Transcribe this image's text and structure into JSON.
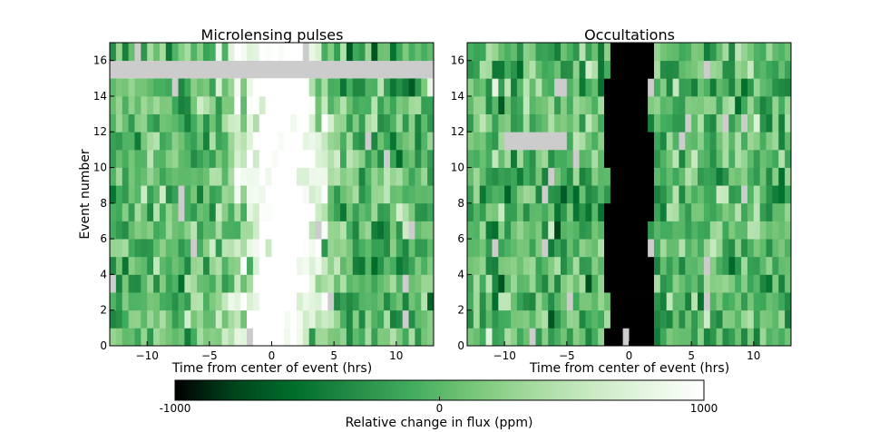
{
  "chart_data": [
    {
      "type": "heatmap",
      "title": "Microlensing pulses",
      "xlabel": "Time from center of event (hrs)",
      "ylabel": "Event number",
      "xlim": [
        -13,
        13
      ],
      "ylim": [
        0,
        17
      ],
      "xticks": [
        -10,
        -5,
        0,
        5,
        10
      ],
      "xtick_labels": [
        "−10",
        "−5",
        "0",
        "5",
        "10"
      ],
      "yticks": [
        0,
        2,
        4,
        6,
        8,
        10,
        12,
        14,
        16
      ],
      "yticks_labels": [
        "0",
        "2",
        "4",
        "6",
        "8",
        "10",
        "12",
        "14",
        "16"
      ],
      "events": 17,
      "missing_rows": [
        15
      ],
      "signal": "brightening",
      "signal_peak_ppm": 1000,
      "signal_width_hrs": 2.2,
      "signal_center_drift_hrs": [
        0.0,
        1.2
      ]
    },
    {
      "type": "heatmap",
      "title": "Occultations",
      "xlabel": "Time from center of event (hrs)",
      "ylabel": "",
      "xlim": [
        -13,
        13
      ],
      "ylim": [
        0,
        17
      ],
      "xticks": [
        -10,
        -5,
        0,
        5,
        10
      ],
      "xtick_labels": [
        "−10",
        "−5",
        "0",
        "5",
        "10"
      ],
      "yticks": [
        0,
        2,
        4,
        6,
        8,
        10,
        12,
        14,
        16
      ],
      "yticks_labels": [
        "0",
        "2",
        "4",
        "6",
        "8",
        "10",
        "12",
        "14",
        "16"
      ],
      "events": 17,
      "missing_segment": {
        "row": 11,
        "x_from": -9.5,
        "x_to": -5.2
      },
      "signal": "dimming",
      "signal_depth_ppm": -1000,
      "signal_halfwidth_hrs": 1.9
    }
  ],
  "colorbar": {
    "label": "Relative change in flux (ppm)",
    "min": -1000,
    "max": 1000,
    "ticks": [
      -1000,
      0,
      1000
    ],
    "tick_labels": [
      "-1000",
      "0",
      "1000"
    ],
    "colormap": [
      "#000000",
      "#00441b",
      "#006d2c",
      "#238b45",
      "#41ab5d",
      "#74c476",
      "#a1d99b",
      "#c7e9c0",
      "#e5f5e0",
      "#ffffff"
    ],
    "missing_color": "#cccccc"
  }
}
